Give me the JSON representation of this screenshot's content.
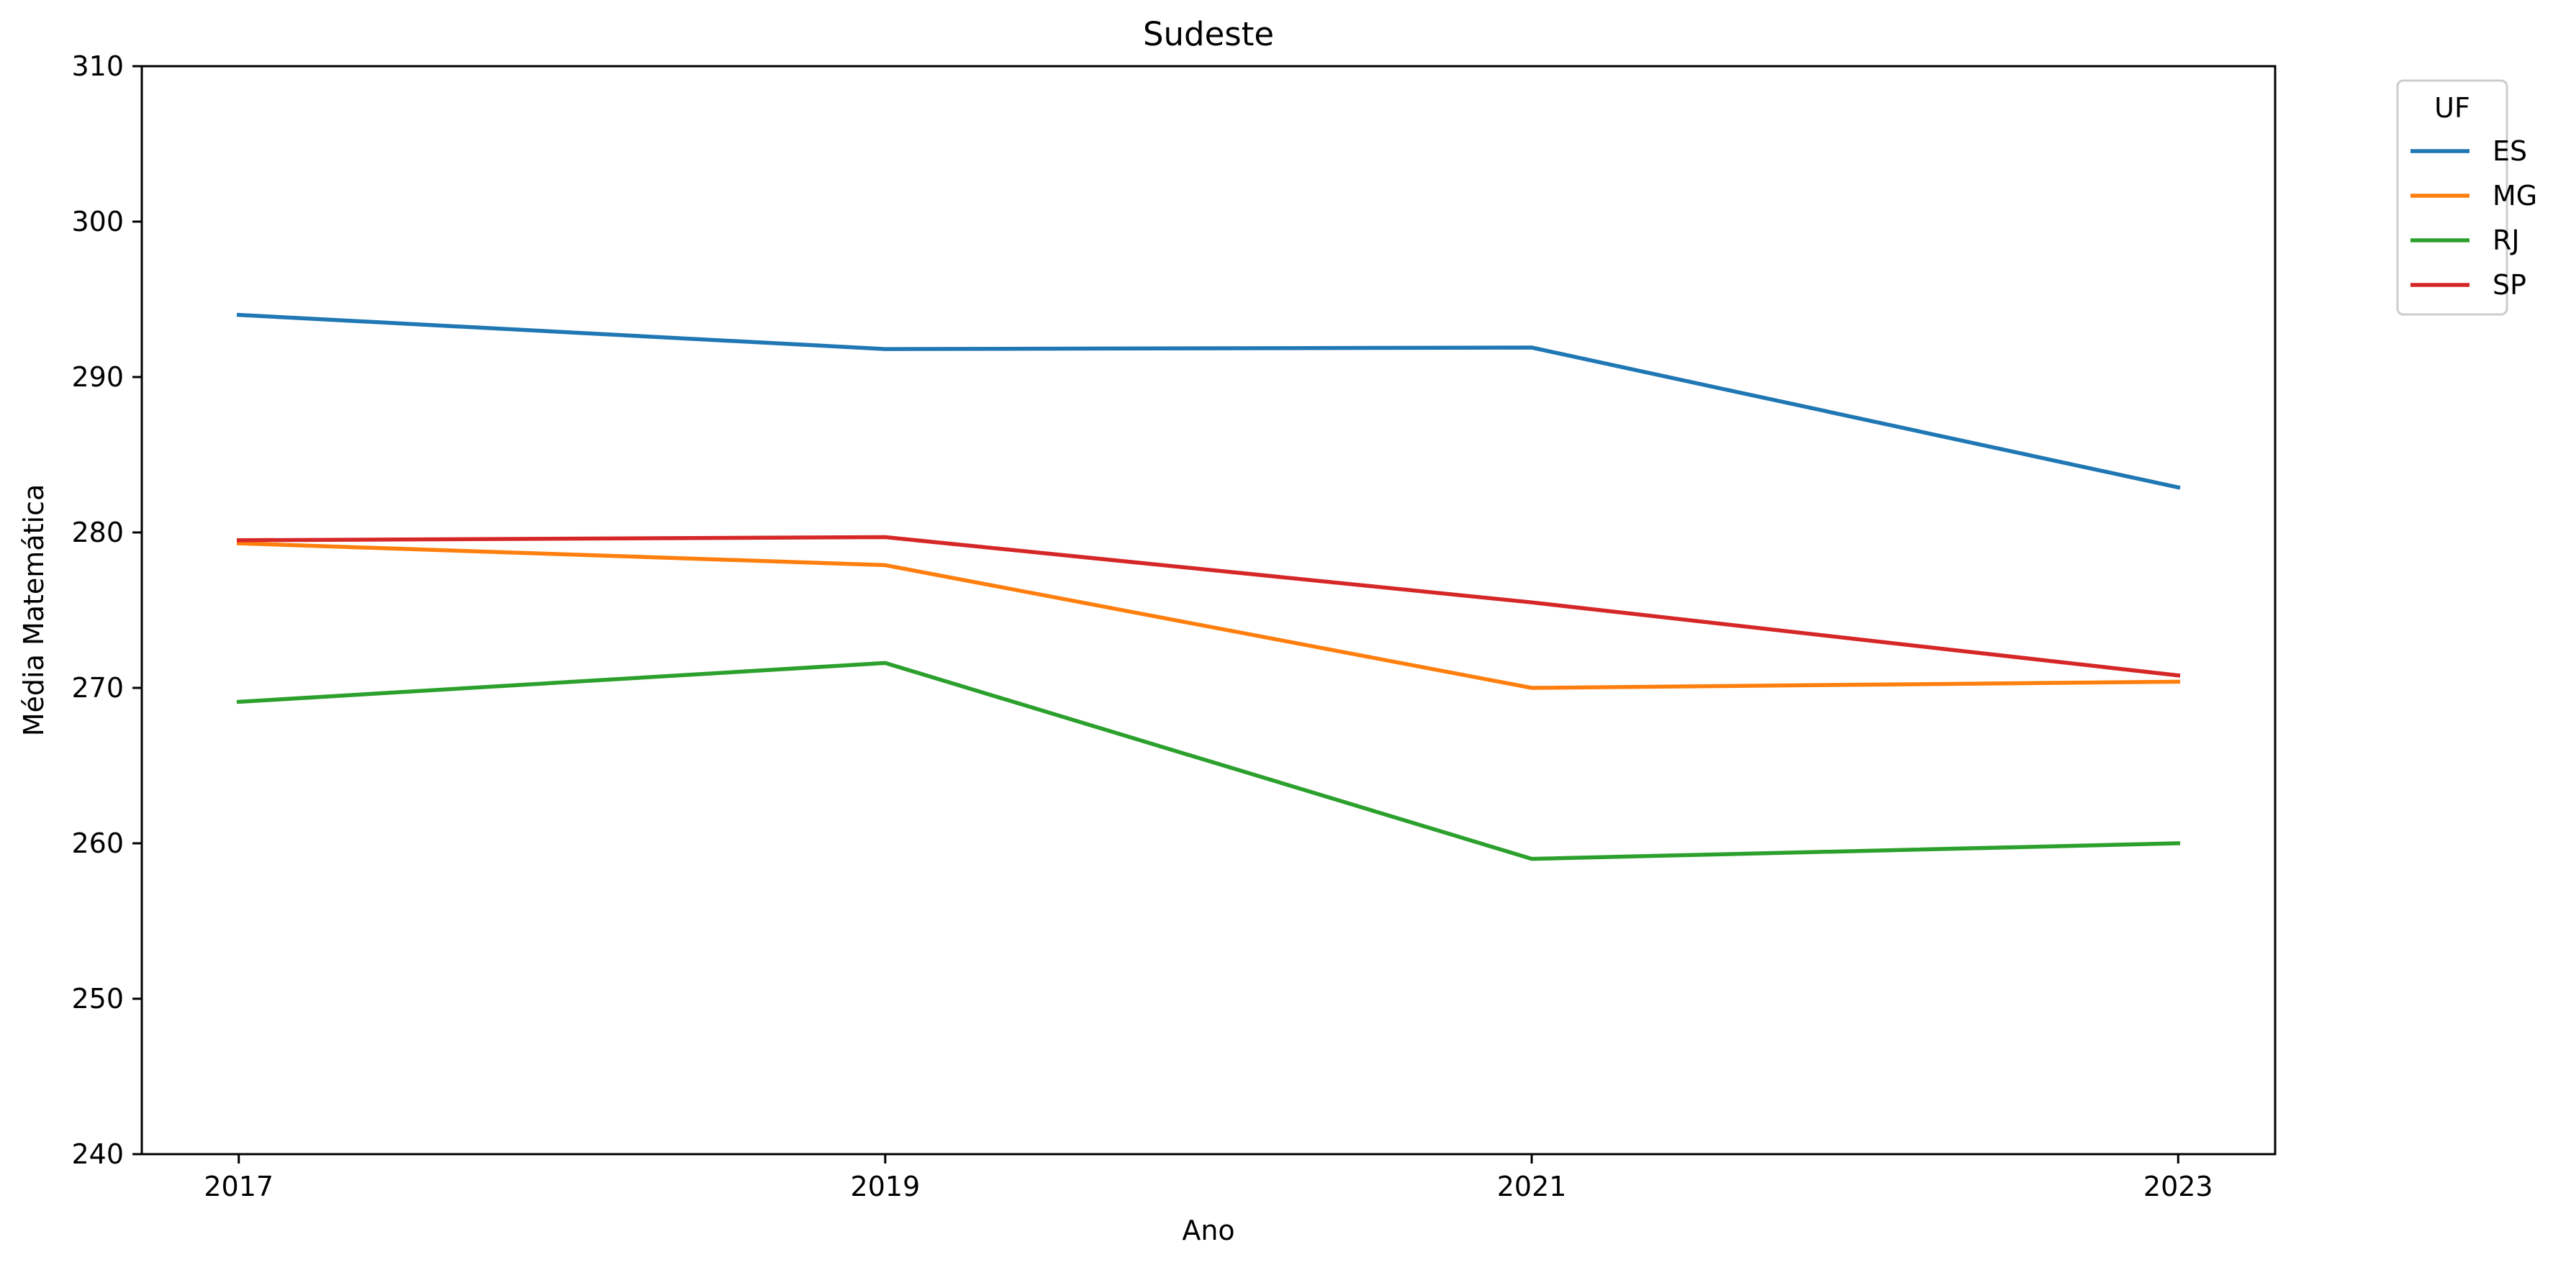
{
  "chart_data": {
    "type": "line",
    "title": "Sudeste",
    "xlabel": "Ano",
    "ylabel": "Média Matemática",
    "x": [
      2017,
      2019,
      2021,
      2023
    ],
    "x_tick_labels": [
      "2017",
      "2019",
      "2021",
      "2023"
    ],
    "xlim": [
      2016.7,
      2023.3
    ],
    "ylim": [
      240,
      310
    ],
    "y_ticks": [
      240,
      250,
      260,
      270,
      280,
      290,
      300,
      310
    ],
    "y_tick_labels": [
      "240",
      "250",
      "260",
      "270",
      "280",
      "290",
      "300",
      "310"
    ],
    "grid": false,
    "legend": {
      "title": "UF",
      "position": "outside-top-right"
    },
    "series": [
      {
        "name": "ES",
        "color": "#1f77b4",
        "values": [
          294.0,
          291.8,
          291.9,
          282.9
        ]
      },
      {
        "name": "MG",
        "color": "#ff7f0e",
        "values": [
          279.3,
          277.9,
          270.0,
          270.4
        ]
      },
      {
        "name": "RJ",
        "color": "#2ca02c",
        "values": [
          269.1,
          271.6,
          259.0,
          260.0
        ]
      },
      {
        "name": "SP",
        "color": "#d62728",
        "values": [
          279.5,
          279.7,
          275.5,
          270.8
        ]
      }
    ]
  }
}
